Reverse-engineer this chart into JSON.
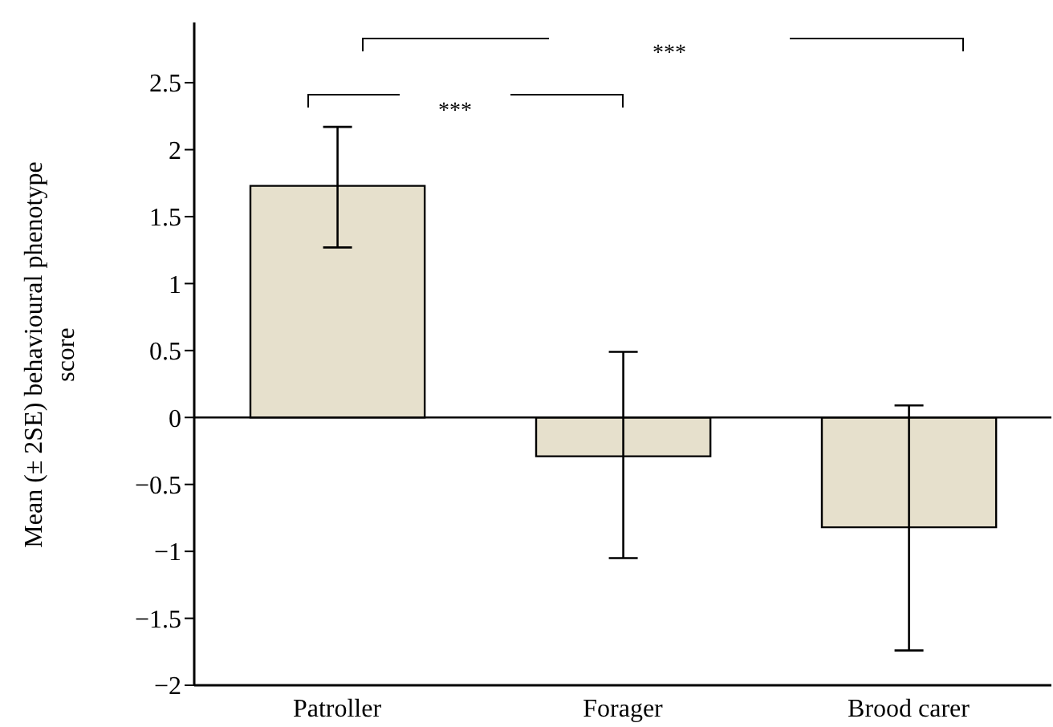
{
  "chart_data": {
    "type": "bar",
    "ylabel": "Mean (± 2SE) behavioural phenotype score",
    "categories": [
      "Patroller",
      "Forager",
      "Brood carer"
    ],
    "values": [
      1.73,
      -0.29,
      -0.82
    ],
    "errors": [
      [
        1.27,
        2.17
      ],
      [
        -1.05,
        0.49
      ],
      [
        -1.74,
        0.09
      ]
    ],
    "color": "#e6e0cc",
    "ylim": [
      -2,
      2.95
    ],
    "yticks": [
      -2,
      -1.5,
      -1,
      -0.5,
      0,
      0.5,
      1,
      1.5,
      2,
      2.5
    ],
    "ref_lines": [
      {
        "axis": "y",
        "value": 0,
        "color": "#000000"
      }
    ],
    "annotations": [
      "***",
      "***"
    ],
    "grid": false,
    "legend": false
  }
}
